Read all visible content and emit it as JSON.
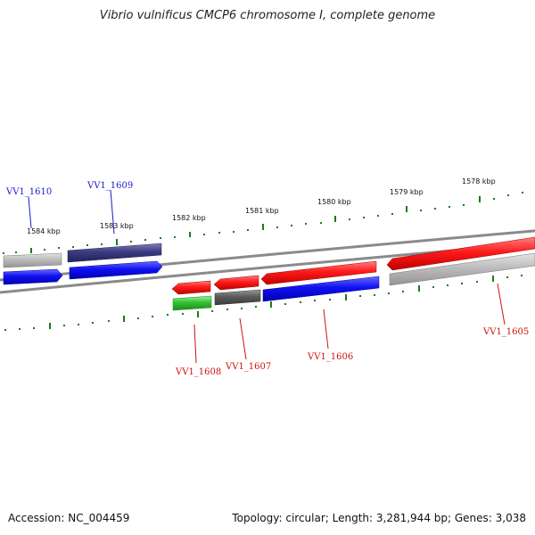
{
  "title": "Vibrio vulnificus CMCP6 chromosome I, complete genome",
  "footer": {
    "accession": "Accession: NC_004459",
    "summary": "Topology: circular; Length: 3,281,944 bp; Genes: 3,038"
  },
  "scale_labels": [
    "1584 kbp",
    "1583 kbp",
    "1582 kbp",
    "1581 kbp",
    "1580 kbp",
    "1579 kbp",
    "1578 kbp"
  ],
  "gene_labels": [
    "VV1_1610",
    "VV1_1609",
    "VV1_1608",
    "VV1_1607",
    "VV1_1606",
    "VV1_1605"
  ],
  "colors": {
    "backbone": "#8a8a8a",
    "tick": "#1e7a1e",
    "red": "#e8141a",
    "blue": "#1010e0",
    "navy": "#3a3a80",
    "grey_light": "#b8b8b8",
    "grey_dark": "#5a5a5a",
    "green": "#33c233",
    "label_red": "#d01010",
    "label_blue": "#1a1acc"
  }
}
